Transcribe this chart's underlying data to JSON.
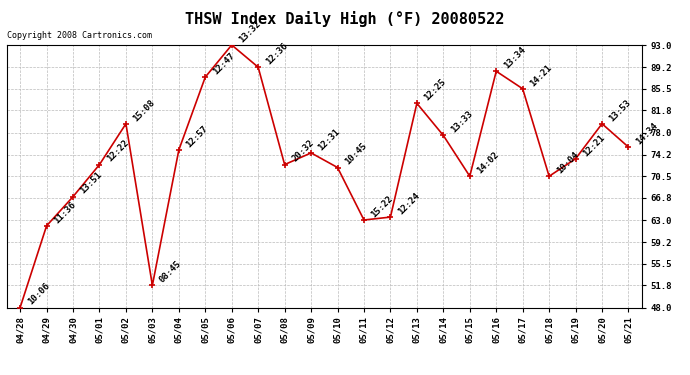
{
  "title": "THSW Index Daily High (°F) 20080522",
  "copyright": "Copyright 2008 Cartronics.com",
  "x_labels": [
    "04/28",
    "04/29",
    "04/30",
    "05/01",
    "05/02",
    "05/03",
    "05/04",
    "05/05",
    "05/06",
    "05/07",
    "05/08",
    "05/09",
    "05/10",
    "05/11",
    "05/12",
    "05/13",
    "05/14",
    "05/15",
    "05/16",
    "05/17",
    "05/18",
    "05/19",
    "05/20",
    "05/21"
  ],
  "y_values": [
    48.0,
    62.0,
    67.0,
    72.5,
    79.5,
    51.8,
    75.0,
    87.5,
    93.0,
    89.2,
    72.5,
    74.5,
    72.0,
    63.0,
    63.5,
    83.0,
    77.5,
    70.5,
    88.5,
    85.5,
    70.5,
    73.5,
    79.5,
    75.5
  ],
  "point_labels": [
    "10:06",
    "11:36",
    "13:51",
    "12:22",
    "15:08",
    "08:45",
    "12:57",
    "12:47",
    "13:32",
    "12:36",
    "20:32",
    "12:31",
    "10:45",
    "15:22",
    "12:24",
    "12:25",
    "13:33",
    "14:02",
    "13:34",
    "14:21",
    "10:04",
    "12:21",
    "13:53",
    "14:34"
  ],
  "y_ticks": [
    48.0,
    51.8,
    55.5,
    59.2,
    63.0,
    66.8,
    70.5,
    74.2,
    78.0,
    81.8,
    85.5,
    89.2,
    93.0
  ],
  "y_min": 48.0,
  "y_max": 93.0,
  "line_color": "#cc0000",
  "marker_color": "#cc0000",
  "bg_color": "#ffffff",
  "grid_color": "#bbbbbb",
  "title_fontsize": 11,
  "tick_fontsize": 6.5,
  "annotation_fontsize": 6.5
}
